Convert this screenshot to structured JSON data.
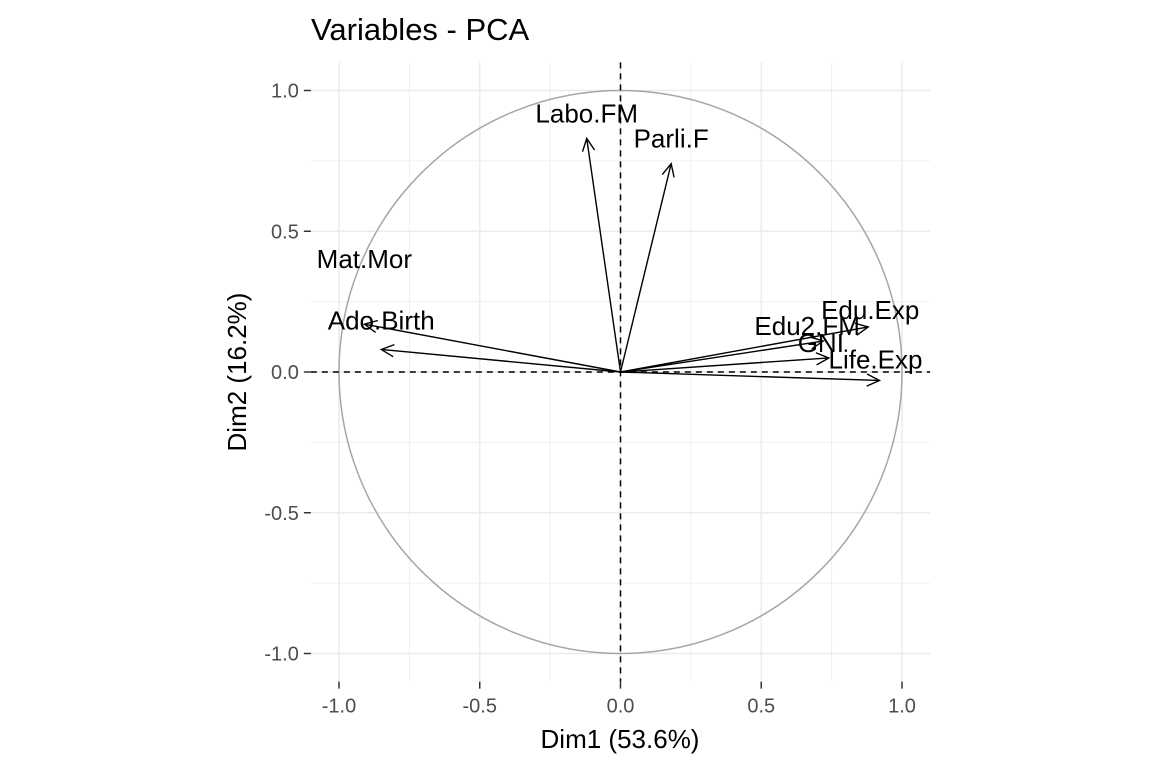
{
  "chart_data": {
    "type": "scatter",
    "subtype": "pca-variable-correlation-circle",
    "title": "Variables - PCA",
    "xlabel": "Dim1 (53.6%)",
    "ylabel": "Dim2 (16.2%)",
    "xlim": [
      -1.1,
      1.1
    ],
    "ylim": [
      -1.1,
      1.1
    ],
    "x_ticks": [
      {
        "value": -1.0,
        "label": "-1.0"
      },
      {
        "value": -0.5,
        "label": "-0.5"
      },
      {
        "value": 0.0,
        "label": "0.0"
      },
      {
        "value": 0.5,
        "label": "0.5"
      },
      {
        "value": 1.0,
        "label": "1.0"
      }
    ],
    "y_ticks": [
      {
        "value": -1.0,
        "label": "-1.0"
      },
      {
        "value": -0.5,
        "label": "-0.5"
      },
      {
        "value": 0.0,
        "label": "0.0"
      },
      {
        "value": 0.5,
        "label": "0.5"
      },
      {
        "value": 1.0,
        "label": "1.0"
      }
    ],
    "grid": true,
    "unit_circle": true,
    "reference_lines": "dashed at x=0 and y=0",
    "colors": {
      "arrows": "#000000",
      "circle": "#a6a6a6",
      "grid": "#ebebeb",
      "ticks": "#4d4d4d"
    },
    "variables": [
      {
        "name": "Edu.Exp",
        "x": 0.88,
        "y": 0.16
      },
      {
        "name": "Life.Exp",
        "x": 0.92,
        "y": -0.03
      },
      {
        "name": "GNI",
        "x": 0.74,
        "y": 0.05
      },
      {
        "name": "Edu2.FM",
        "x": 0.72,
        "y": 0.11
      },
      {
        "name": "Labo.FM",
        "x": -0.12,
        "y": 0.83
      },
      {
        "name": "Parli.F",
        "x": 0.18,
        "y": 0.74
      },
      {
        "name": "Mat.Mor",
        "x": -0.91,
        "y": 0.17
      },
      {
        "name": "Ado.Birth",
        "x": -0.85,
        "y": 0.08
      }
    ]
  }
}
